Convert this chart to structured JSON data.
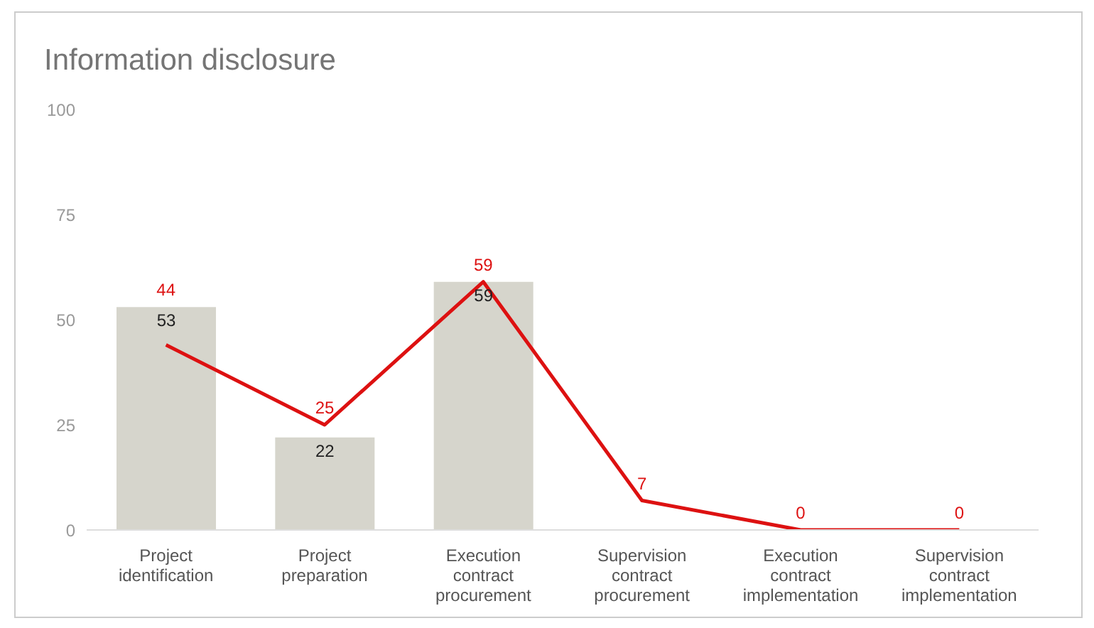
{
  "chart_data": {
    "type": "bar",
    "title": "Information disclosure",
    "categories": [
      "Project identification",
      "Project preparation",
      "Execution contract procurement",
      "Supervision contract procurement",
      "Execution contract implementation",
      "Supervision contract implementation"
    ],
    "series": [
      {
        "color": "#d6d5cc",
        "values": [
          53,
          22,
          59,
          null,
          null,
          null
        ]
      },
      {
        "type": "line",
        "color": "#dd1111",
        "values": [
          44,
          25,
          59,
          7,
          0,
          0
        ]
      }
    ],
    "ylim": [
      0,
      100
    ],
    "yticks": [
      0,
      25,
      50,
      75,
      100
    ],
    "grid": false,
    "legend": false,
    "marker": "none",
    "line_style": "solid",
    "data_labels": true
  }
}
